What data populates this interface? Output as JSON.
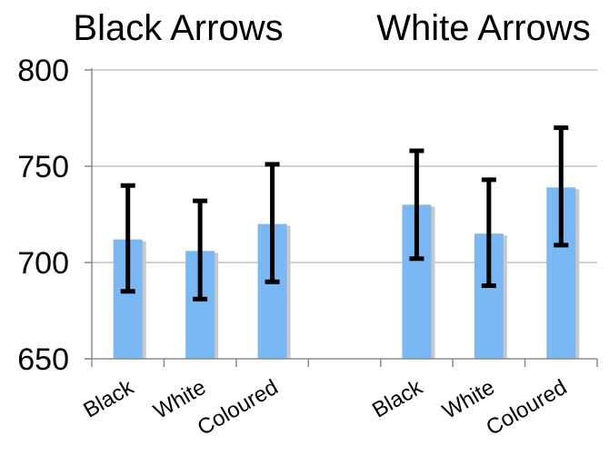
{
  "chart_data": {
    "type": "bar",
    "group_titles": [
      "Black Arrows",
      "White Arrows"
    ],
    "categories": [
      "Black",
      "White",
      "Coloured",
      "Black",
      "White",
      "Coloured"
    ],
    "values": [
      712,
      706,
      720,
      730,
      715,
      739
    ],
    "error_low": [
      685,
      681,
      690,
      702,
      688,
      709
    ],
    "error_high": [
      740,
      732,
      751,
      758,
      743,
      770
    ],
    "ylim": [
      650,
      800
    ],
    "yticks": [
      "650",
      "700",
      "750",
      "800"
    ],
    "grid": true,
    "colors": {
      "bar": "#7ab8f5",
      "bar_shadow": "#c8c8c8",
      "error": "#000000",
      "grid": "#b3b3b3",
      "axis": "#8c8c8c"
    }
  }
}
